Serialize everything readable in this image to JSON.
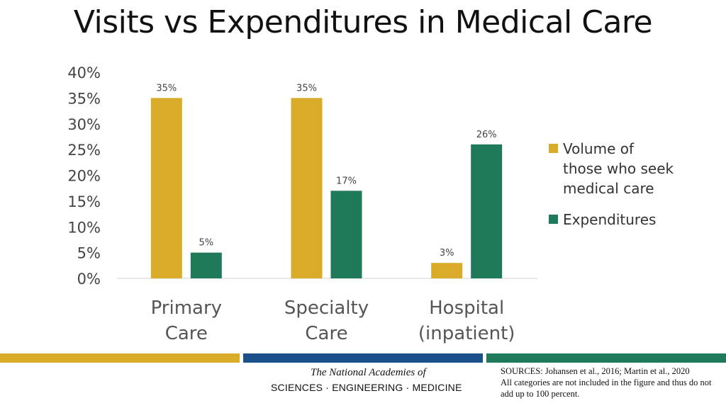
{
  "colors": {
    "volume": "#DAAB28",
    "expenditures": "#1F7A5A",
    "bar_gold": "#DAAB28",
    "bar_blue": "#1B4F8A",
    "bar_green": "#1F7A5A"
  },
  "chart_data": {
    "type": "bar",
    "title": "Visits vs Expenditures in Medical Care",
    "categories": [
      [
        "Primary",
        "Care"
      ],
      [
        "Specialty",
        "Care"
      ],
      [
        "Hospital",
        "(inpatient)"
      ]
    ],
    "series": [
      {
        "name": "Volume of those who seek medical care",
        "legend_lines": [
          "Volume of",
          "those who seek",
          "medical care"
        ],
        "values": [
          35,
          35,
          3
        ],
        "labels": [
          "35%",
          "35%",
          "3%"
        ]
      },
      {
        "name": "Expenditures",
        "legend_lines": [
          "Expenditures"
        ],
        "values": [
          5,
          17,
          26
        ],
        "labels": [
          "5%",
          "17%",
          "26%"
        ]
      }
    ],
    "y_ticks": [
      "40%",
      "35%",
      "30%",
      "25%",
      "20%",
      "15%",
      "10%",
      "5%",
      "0%"
    ],
    "ylim": [
      0,
      40
    ],
    "ylabel": "",
    "xlabel": "",
    "grid": false,
    "legend_position": "right"
  },
  "footer": {
    "logo_line1": "The National Academies of",
    "logo_line2": "SCIENCES · ENGINEERING · MEDICINE",
    "sources_line1": "SOURCES: Johansen et al., 2016; Martin et al., 2020",
    "sources_line2": "All categories are not included in the figure and thus do not add up to 100 percent."
  }
}
